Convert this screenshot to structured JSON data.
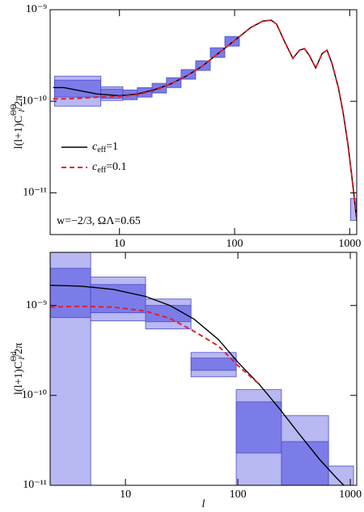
{
  "chart_data": [
    {
      "type": "line",
      "log": true,
      "ylabel": {
        "main": "l(l+1)C",
        "sup": "ΘΘ",
        "sub": "l",
        "tail": "/2π"
      },
      "annotation": "w=−2/3, ΩΛ=0.65",
      "xlim": [
        2.5,
        1150
      ],
      "ylim": [
        3.5e-12,
        1e-09
      ],
      "xticks": [
        10,
        100,
        1000
      ],
      "yticks": [
        {
          "value": 1e-11,
          "label": "10⁻¹¹"
        },
        {
          "value": 1e-10,
          "label": "10⁻¹⁰"
        },
        {
          "value": 1e-09,
          "label": "10⁻⁹"
        }
      ],
      "boxes": {
        "edge": "#4a4ac8",
        "items": [
          {
            "x": [
              2.73,
              6.89
            ],
            "y": [
              8.85e-11,
              1.88e-10
            ],
            "fill": "#b8b8f2"
          },
          {
            "x": [
              2.73,
              6.89
            ],
            "y": [
              1.11e-10,
              1.7e-10
            ],
            "fill": "#7c7ce8"
          },
          {
            "x": [
              6.89,
              10.7
            ],
            "y": [
              1.02e-10,
              1.44e-10
            ],
            "fill": "#b8b8f2"
          },
          {
            "x": [
              6.89,
              10.7
            ],
            "y": [
              1.08e-10,
              1.36e-10
            ],
            "fill": "#7c7ce8"
          },
          {
            "x": [
              10.7,
              14.3
            ],
            "y": [
              1.04e-10,
              1.33e-10
            ],
            "fill": "#7c7ce8"
          },
          {
            "x": [
              14.3,
              19.2
            ],
            "y": [
              1.11e-10,
              1.41e-10
            ],
            "fill": "#7c7ce8"
          },
          {
            "x": [
              19.2,
              25.6
            ],
            "y": [
              1.23e-10,
              1.57e-10
            ],
            "fill": "#7c7ce8"
          },
          {
            "x": [
              25.6,
              34.3
            ],
            "y": [
              1.41e-10,
              1.81e-10
            ],
            "fill": "#7c7ce8"
          },
          {
            "x": [
              34.3,
              45.9
            ],
            "y": [
              1.74e-10,
              2.22e-10
            ],
            "fill": "#7c7ce8"
          },
          {
            "x": [
              45.9,
              61.5
            ],
            "y": [
              2.17e-10,
              2.77e-10
            ],
            "fill": "#7c7ce8"
          },
          {
            "x": [
              61.5,
              82.3
            ],
            "y": [
              3.01e-10,
              3.84e-10
            ],
            "fill": "#7c7ce8"
          },
          {
            "x": [
              82.3,
              110
            ],
            "y": [
              4e-10,
              5.1e-10
            ],
            "fill": "#7c7ce8"
          },
          {
            "x": [
              1017,
              1140
            ],
            "y": [
              5e-12,
              8.67e-12
            ],
            "fill": "#b8b8f2"
          }
        ]
      },
      "series": [
        {
          "name": "ceff=1",
          "color": "#000000",
          "dash": false,
          "x": [
            2.65,
            3.3,
            4.6,
            6.4,
            10,
            14.3,
            19.8,
            27.3,
            37.8,
            52,
            72,
            100,
            138,
            176,
            208,
            232,
            273,
            321,
            366,
            404,
            445,
            506,
            576,
            635,
            700,
            797,
            879,
            968,
            1067,
            1140
          ],
          "values": [
            1.41e-10,
            1.41e-10,
            1.3e-10,
            1.2e-10,
            1.15e-10,
            1.2e-10,
            1.33e-10,
            1.53e-10,
            1.88e-10,
            2.4e-10,
            3.33e-10,
            4.61e-10,
            6.38e-10,
            7.51e-10,
            7.67e-10,
            6.93e-10,
            4.43e-10,
            2.94e-10,
            3.61e-10,
            3.76e-10,
            3.19e-10,
            2.31e-10,
            3.33e-10,
            3.61e-10,
            2.61e-10,
            1.41e-10,
            7.36e-11,
            3.26e-11,
            1.18e-11,
            5.43e-12
          ]
        },
        {
          "name": "ceff=0.1",
          "color": "#e0202a",
          "dash": true,
          "x": [
            2.65,
            3.3,
            4.6,
            6.4,
            10,
            14.3,
            19.8,
            27.3,
            37.8,
            52,
            72,
            100,
            138,
            176,
            208,
            232,
            273,
            321,
            366,
            404,
            445,
            506,
            576,
            635,
            700,
            797,
            879,
            968,
            1067,
            1140
          ],
          "values": [
            1.06e-10,
            1.06e-10,
            1.08e-10,
            1.11e-10,
            1.13e-10,
            1.18e-10,
            1.3e-10,
            1.53e-10,
            1.88e-10,
            2.4e-10,
            3.33e-10,
            4.61e-10,
            6.38e-10,
            7.51e-10,
            7.67e-10,
            6.93e-10,
            4.43e-10,
            2.94e-10,
            3.61e-10,
            3.76e-10,
            3.19e-10,
            2.31e-10,
            3.33e-10,
            3.61e-10,
            2.61e-10,
            1.41e-10,
            7.36e-11,
            3.26e-11,
            1.18e-11,
            5.43e-12
          ]
        }
      ]
    },
    {
      "type": "line",
      "log": true,
      "ylabel": {
        "main": "l(l+1)C",
        "sup": "Θd",
        "sub": "l",
        "tail": "/2π"
      },
      "xlabel": "l",
      "xlim": [
        2.14,
        1140
      ],
      "ylim": [
        1e-11,
        3.9e-09
      ],
      "xticks": [
        10,
        100,
        1000
      ],
      "yticks": [
        {
          "value": 1e-11,
          "label": "10⁻¹¹"
        },
        {
          "value": 1e-10,
          "label": "10⁻¹⁰"
        },
        {
          "value": 1e-09,
          "label": "10⁻⁹"
        }
      ],
      "boxes": {
        "edge": "#4a4ac8",
        "items": [
          {
            "x": [
              2.14,
              4.91
            ],
            "y": [
              1e-11,
              3.9e-09
            ],
            "fill": "#b8b8f2"
          },
          {
            "x": [
              2.14,
              4.91
            ],
            "y": [
              7.33e-10,
              2.59e-09
            ],
            "fill": "#7c7ce8"
          },
          {
            "x": [
              4.91,
              15.1
            ],
            "y": [
              6.74e-10,
              2.07e-09
            ],
            "fill": "#b8b8f2"
          },
          {
            "x": [
              4.91,
              15.1
            ],
            "y": [
              8.3e-10,
              1.71e-09
            ],
            "fill": "#7c7ce8"
          },
          {
            "x": [
              15.1,
              38.3
            ],
            "y": [
              5.48e-10,
              1.18e-09
            ],
            "fill": "#b8b8f2"
          },
          {
            "x": [
              15.1,
              38.3
            ],
            "y": [
              6.6e-10,
              1e-09
            ],
            "fill": "#7c7ce8"
          },
          {
            "x": [
              38.3,
              96.7
            ],
            "y": [
              1.61e-10,
              3e-10
            ],
            "fill": "#b8b8f2"
          },
          {
            "x": [
              38.3,
              96.7
            ],
            "y": [
              1.9e-10,
              2.6e-10
            ],
            "fill": "#7c7ce8"
          },
          {
            "x": [
              96.7,
              244
            ],
            "y": [
              1e-11,
              1.16e-10
            ],
            "fill": "#b8b8f2"
          },
          {
            "x": [
              96.7,
              244
            ],
            "y": [
              2.29e-11,
              8.47e-11
            ],
            "fill": "#7c7ce8"
          },
          {
            "x": [
              244,
              640
            ],
            "y": [
              1e-11,
              5.96e-11
            ],
            "fill": "#b8b8f2"
          },
          {
            "x": [
              244,
              640
            ],
            "y": [
              1e-11,
              3.06e-11
            ],
            "fill": "#7c7ce8"
          },
          {
            "x": [
              640,
              1069
            ],
            "y": [
              1e-11,
              1.64e-11
            ],
            "fill": "#b8b8f2"
          }
        ]
      },
      "series": [
        {
          "color": "#000000",
          "dash": false,
          "x": [
            2.14,
            4.02,
            7.8,
            15.1,
            24.9,
            40.9,
            67.1,
            100,
            154,
            233,
            352,
            533,
            743,
            875
          ],
          "values": [
            1.68e-09,
            1.64e-09,
            1.51e-09,
            1.26e-09,
            1e-09,
            7.03e-10,
            4.19e-10,
            2.34e-10,
            1.34e-10,
            7.18e-11,
            3.7e-11,
            1.94e-11,
            1.23e-11,
            1e-11
          ]
        },
        {
          "color": "#e0202a",
          "dash": true,
          "x": [
            2.14,
            4.02,
            7.8,
            15.1,
            24.9,
            40.9,
            67.1,
            100,
            154
          ],
          "values": [
            9.59e-10,
            9.79e-10,
            9.59e-10,
            8.65e-10,
            7.18e-10,
            5.15e-10,
            3.55e-10,
            2.15e-10,
            1.34e-10
          ]
        }
      ]
    }
  ]
}
